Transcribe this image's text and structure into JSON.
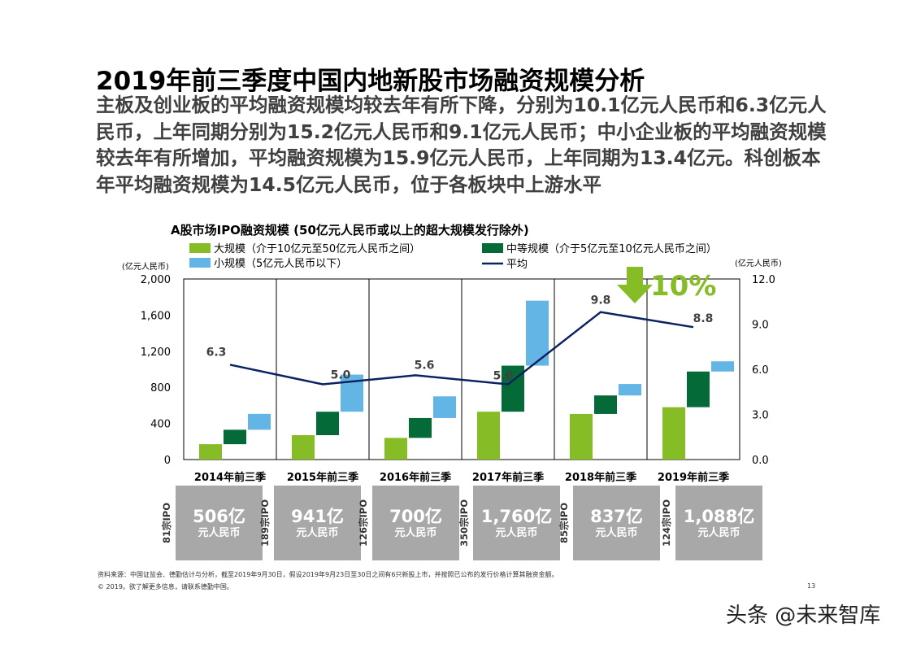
{
  "title": "2019年前三季度中国内地新股市场融资规模分析",
  "subtitle": "主板及创业板的平均融资规模均较去年有所下降，分别为10.1亿元人民币和6.3亿元人民币，上年同期分别为15.2亿元人民币和9.1亿元人民币；中小企业板的平均融资规模较去年有所增加，平均融资规模为15.9亿元人民币，上年同期为13.4亿元。科创板本年平均融资规模为14.5亿元人民币，位于各板块中上游水平",
  "chart_data": {
    "type": "bar",
    "title": "A股市场IPO融资规模 (50亿元人民币或以上的超大规模发行除外)",
    "categories": [
      "2014年前三季",
      "2015年前三季",
      "2016年前三季",
      "2017年前三季",
      "2018年前三季",
      "2019年前三季"
    ],
    "left_axis_unit": "(亿元人民币)",
    "right_axis_unit": "(亿元人民币)",
    "ylim": [
      0,
      2000
    ],
    "y2lim": [
      0,
      12
    ],
    "yticks": [
      "0",
      "400",
      "800",
      "1,200",
      "1,600",
      "2,000"
    ],
    "y2ticks": [
      "0.0",
      "3.0",
      "6.0",
      "9.0",
      "12.0"
    ],
    "series": [
      {
        "name": "大规模（介于10亿元至50亿元人民币之间）",
        "color": "#86bc25",
        "offset": [
          0,
          0,
          0,
          0,
          0,
          0
        ],
        "values": [
          170,
          270,
          240,
          530,
          505,
          580
        ]
      },
      {
        "name": "中等规模（介于5亿元至10亿元人民币之间）",
        "color": "#046a38",
        "offset": [
          170,
          270,
          240,
          530,
          505,
          580
        ],
        "values": [
          160,
          260,
          220,
          510,
          205,
          395
        ]
      },
      {
        "name": "小规模（5亿元人民币以下）",
        "color": "#62b5e5",
        "offset": [
          330,
          530,
          460,
          1040,
          710,
          975
        ],
        "values": [
          176,
          411,
          240,
          720,
          127,
          113
        ]
      }
    ],
    "average": {
      "name": "平均",
      "color": "#0b2361",
      "values": [
        6.3,
        5.0,
        5.6,
        5.0,
        9.8,
        8.8
      ],
      "labels": [
        "6.3",
        "5.0",
        "5.6",
        "5.0",
        "9.8",
        "8.8"
      ]
    },
    "annotation": {
      "text": "10%",
      "color": "#86bc25"
    }
  },
  "tiles": [
    {
      "ipo": "81宗IPO",
      "amount": "506亿",
      "unit": "元人民币"
    },
    {
      "ipo": "189宗IPO",
      "amount": "941亿",
      "unit": "元人民币"
    },
    {
      "ipo": "126宗IPO",
      "amount": "700亿",
      "unit": "元人民币"
    },
    {
      "ipo": "350宗IPO",
      "amount": "1,760亿",
      "unit": "元人民币"
    },
    {
      "ipo": "85宗IPO",
      "amount": "837亿",
      "unit": "元人民币"
    },
    {
      "ipo": "124宗IPO",
      "amount": "1,088亿",
      "unit": "元人民币"
    }
  ],
  "source": "资料来源：中国证监会、德勤估计与分析，截至2019年9月30日，假设2019年9月23日至30日之间有6只新股上市，并按照已公布的发行价格计算其融资金额。",
  "copyright": "© 2019。欲了解更多信息，请联系德勤中国。",
  "page_number": "13",
  "watermark": "头条 @未来智库"
}
